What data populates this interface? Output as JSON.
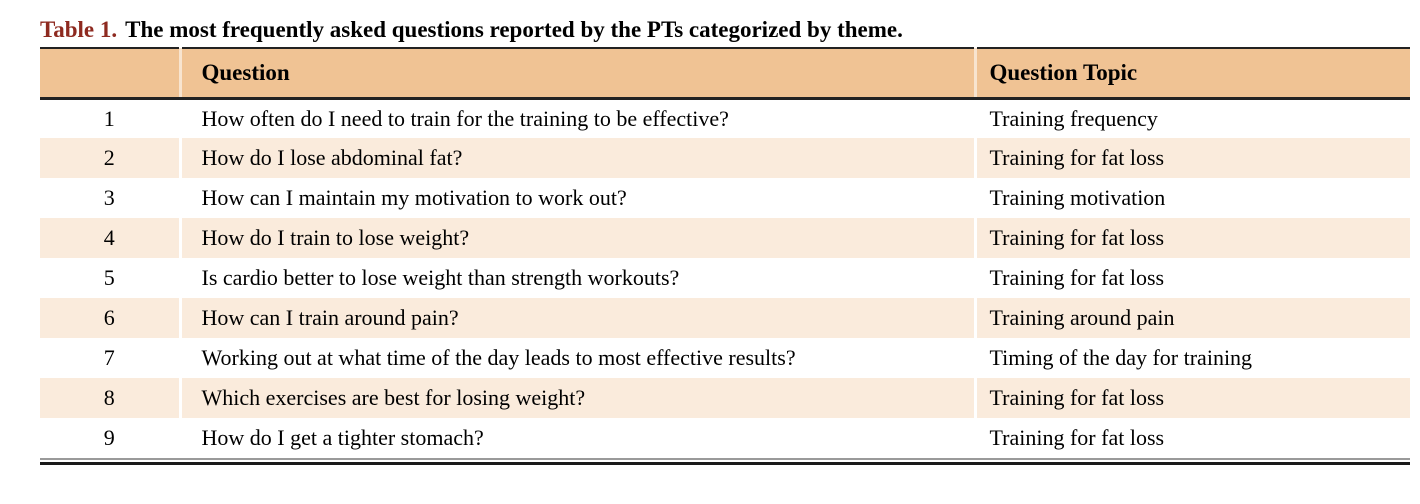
{
  "caption": {
    "label": "Table 1.",
    "text": "The most frequently asked questions reported by the PTs categorized by theme."
  },
  "table": {
    "columns": {
      "number": "",
      "question": "Question",
      "topic": "Question Topic"
    },
    "rows": [
      {
        "number": "1",
        "question": "How often do I need to train for the training to be effective?",
        "topic": "Training frequency"
      },
      {
        "number": "2",
        "question": "How do I lose abdominal fat?",
        "topic": "Training for fat loss"
      },
      {
        "number": "3",
        "question": "How can I maintain my motivation to work out?",
        "topic": "Training motivation"
      },
      {
        "number": "4",
        "question": "How do I train to lose weight?",
        "topic": "Training for fat loss"
      },
      {
        "number": "5",
        "question": "Is cardio better to lose weight than strength workouts?",
        "topic": "Training for fat loss"
      },
      {
        "number": "6",
        "question": "How can I train around pain?",
        "topic": "Training around pain"
      },
      {
        "number": "7",
        "question": "Working out at what time of the day leads to most effective results?",
        "topic": "Timing of the day for training"
      },
      {
        "number": "8",
        "question": "Which exercises are best for losing weight?",
        "topic": "Training for fat loss"
      },
      {
        "number": "9",
        "question": "How do I get a tighter stomach?",
        "topic": "Training for fat loss"
      }
    ]
  },
  "colors": {
    "header_bg": "#f0c394",
    "row_alt_bg": "#faebdc",
    "caption_label": "#8e2a20",
    "rule_dark": "#222222",
    "rule_gray": "#9a9a9a"
  }
}
